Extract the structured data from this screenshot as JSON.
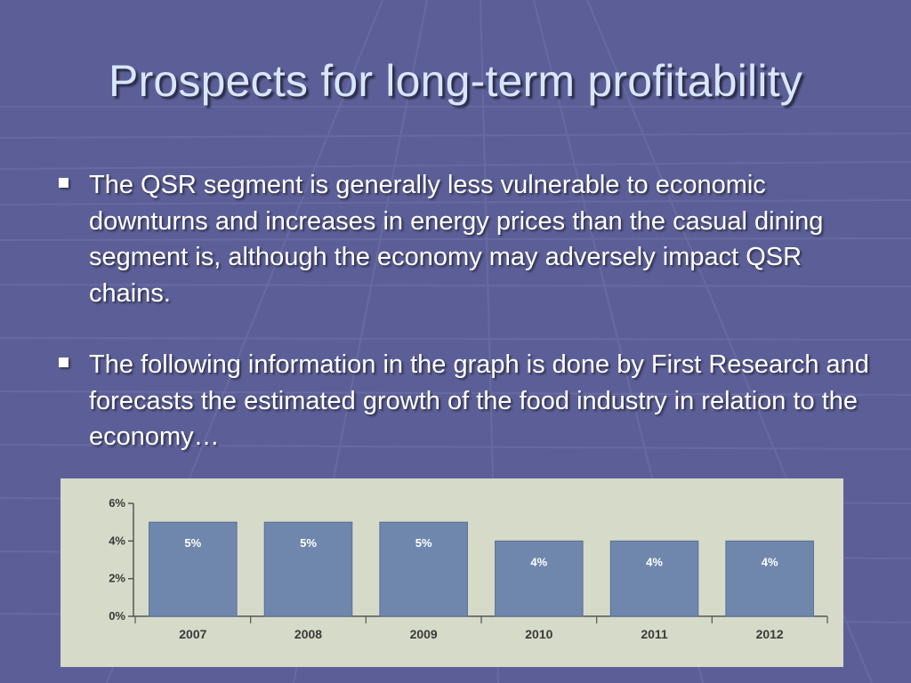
{
  "slide": {
    "title": "Prospects for long-term profitability",
    "bullets": [
      "The QSR segment is generally less vulnerable to economic downturns and increases in energy prices than the casual dining segment is, although the economy may adversely impact QSR chains.",
      "The following information in the graph is done by First Research and forecasts the estimated growth of the food industry in relation to the economy…"
    ]
  },
  "colors": {
    "background": "#5c5f97",
    "title": "#d9e6ff",
    "bar_fill": "#6f87ad",
    "panel": "#d6dac9"
  },
  "chart_data": {
    "type": "bar",
    "title": "",
    "xlabel": "",
    "ylabel": "",
    "categories": [
      "2007",
      "2008",
      "2009",
      "2010",
      "2011",
      "2012"
    ],
    "values": [
      5,
      5,
      5,
      4,
      4,
      4
    ],
    "data_labels": [
      "5%",
      "5%",
      "5%",
      "4%",
      "4%",
      "4%"
    ],
    "y_ticks": [
      "0%",
      "2%",
      "4%",
      "6%"
    ],
    "y_tick_values": [
      0,
      2,
      4,
      6
    ],
    "ylim": [
      0,
      6
    ],
    "grid": false,
    "legend": "none"
  }
}
